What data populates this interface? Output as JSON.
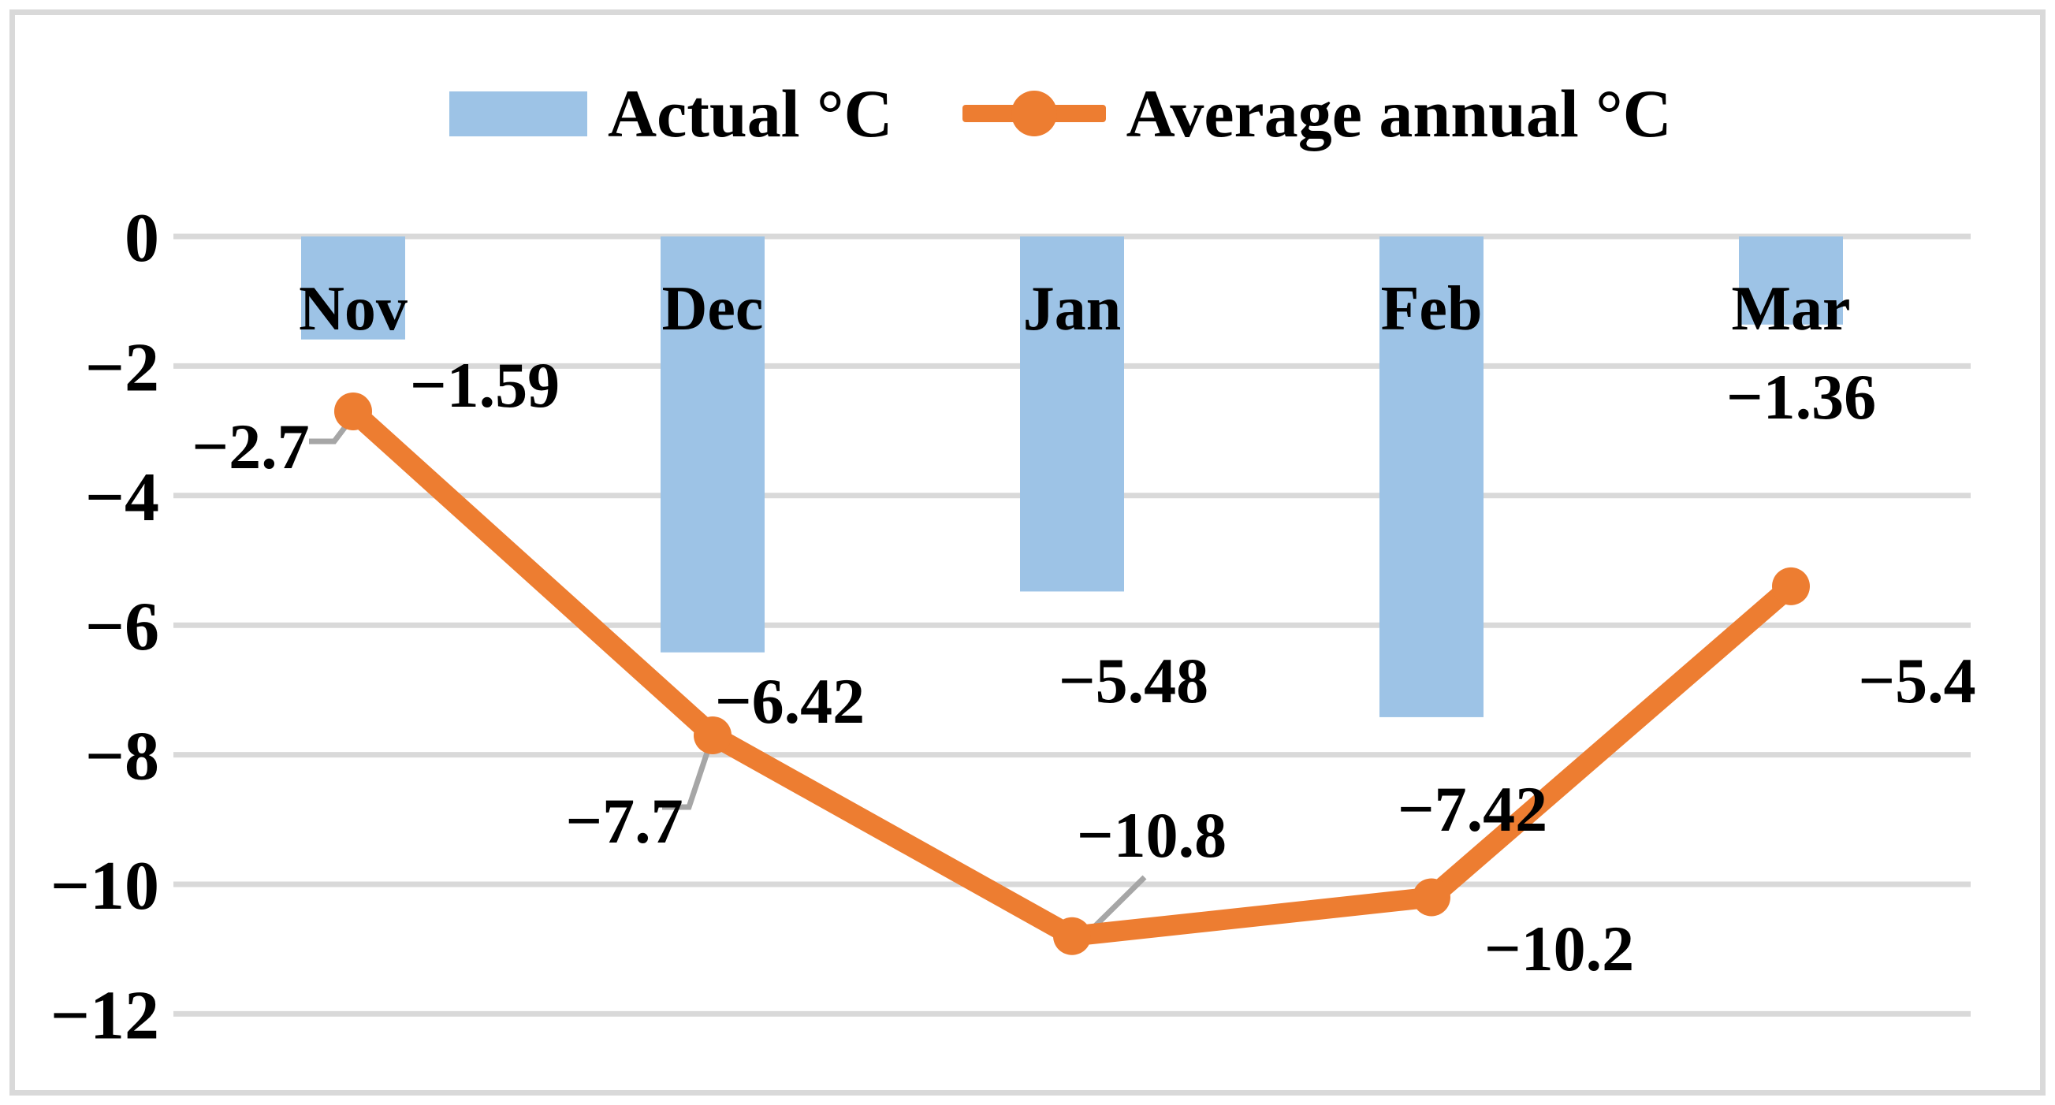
{
  "chart_data": {
    "type": "combo",
    "categories": [
      "Nov",
      "Dec",
      "Jan",
      "Feb",
      "Mar"
    ],
    "series": [
      {
        "name": "Actual °C",
        "type": "bar",
        "color": "#9DC3E6",
        "values": [
          -1.59,
          -6.42,
          -5.48,
          -7.42,
          -1.36
        ],
        "data_labels": [
          "−1.59",
          "−6.42",
          "−5.48",
          "−7.42",
          "−1.36"
        ]
      },
      {
        "name": "Average annual °C",
        "type": "line",
        "color": "#ED7D31",
        "values": [
          -2.7,
          -7.7,
          -10.8,
          -10.2,
          -5.4
        ],
        "data_labels": [
          "−2.7",
          "−7.7",
          "−10.8",
          "−10.2",
          "−5.4"
        ]
      }
    ],
    "y_axis": {
      "min": -12,
      "max": 0,
      "tick_step": 2,
      "tick_labels": [
        "0",
        "−2",
        "−4",
        "−6",
        "−8",
        "−10",
        "−12"
      ]
    },
    "grid": true,
    "legend_position": "top",
    "colors": {
      "background": "#FFFFFF",
      "border": "#D9D9D9",
      "gridline": "#D9D9D9",
      "leader_line": "#A6A6A6",
      "text": "#000000"
    }
  }
}
